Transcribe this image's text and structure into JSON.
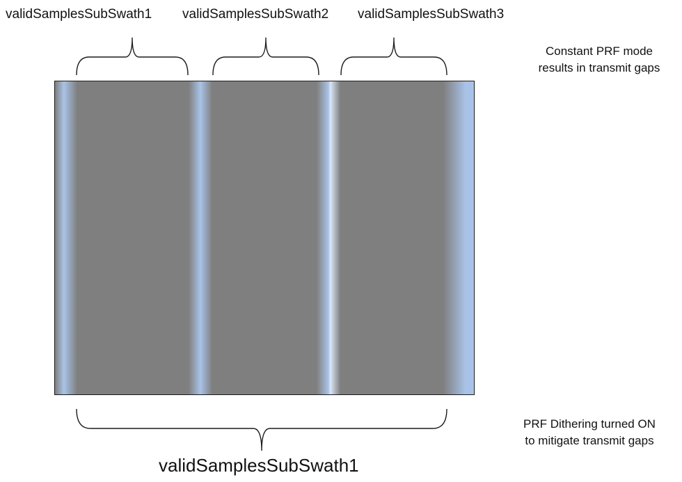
{
  "top_labels": [
    {
      "text": "validSamplesSubSwath1"
    },
    {
      "text": "validSamplesSubSwath2"
    },
    {
      "text": "validSamplesSubSwath3"
    }
  ],
  "notes": {
    "constant_prf": [
      "Constant PRF mode",
      "results in transmit gaps"
    ],
    "dithering": [
      "PRF Dithering turned ON",
      "to mitigate transmit gaps"
    ]
  },
  "bottom_label": "validSamplesSubSwath1",
  "colors": {
    "swath_fill": "#7f7f7f",
    "gap_fill": "#a9c3e8",
    "outline": "#1a1a1a"
  }
}
